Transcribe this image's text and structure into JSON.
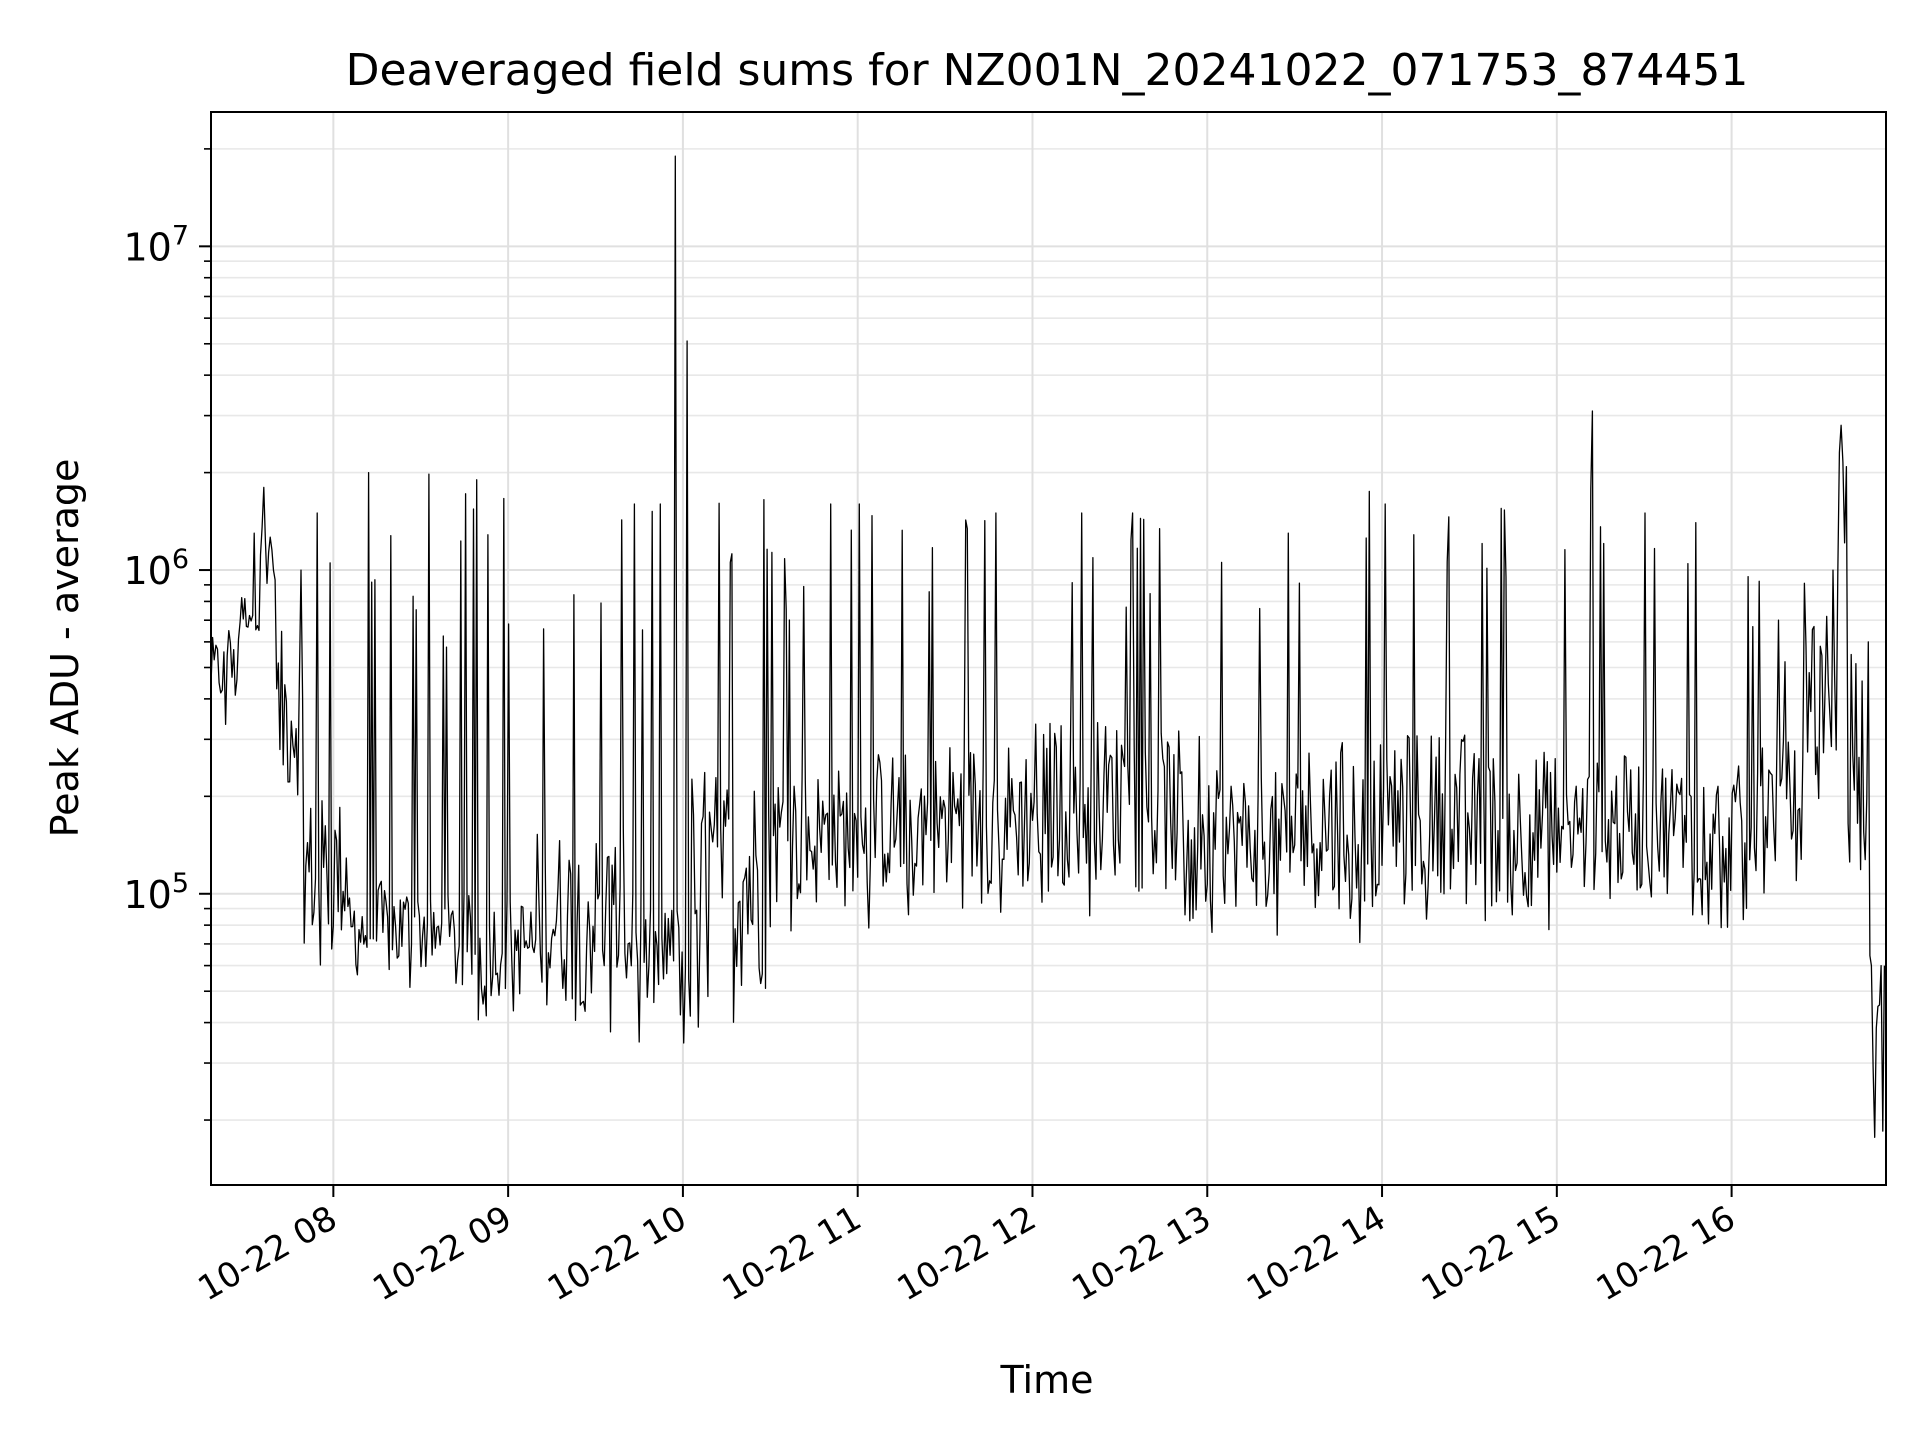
{
  "chart_data": {
    "type": "line",
    "title": "Deaveraged field sums for NZ001N_20241022_071753_874451",
    "xlabel": "Time",
    "ylabel": "Peak ADU - average",
    "x_range": [
      "2024-10-22 07:18",
      "2024-10-22 16:53"
    ],
    "y_scale": "log",
    "ylim": [
      12600,
      26000000
    ],
    "grid": true,
    "x_ticks": [
      {
        "x": "2024-10-22 08:00",
        "label": "10-22 08"
      },
      {
        "x": "2024-10-22 09:00",
        "label": "10-22 09"
      },
      {
        "x": "2024-10-22 10:00",
        "label": "10-22 10"
      },
      {
        "x": "2024-10-22 11:00",
        "label": "10-22 11"
      },
      {
        "x": "2024-10-22 12:00",
        "label": "10-22 12"
      },
      {
        "x": "2024-10-22 13:00",
        "label": "10-22 13"
      },
      {
        "x": "2024-10-22 14:00",
        "label": "10-22 14"
      },
      {
        "x": "2024-10-22 15:00",
        "label": "10-22 15"
      },
      {
        "x": "2024-10-22 16:00",
        "label": "10-22 16"
      }
    ],
    "y_ticks": [
      {
        "value": 100000,
        "base": "10",
        "exp": "5"
      },
      {
        "value": 1000000,
        "base": "10",
        "exp": "6"
      },
      {
        "value": 10000000,
        "base": "10",
        "exp": "7"
      }
    ],
    "series": [
      {
        "color": "#000000",
        "segments": [
          {
            "start": "2024-10-22 07:18",
            "end": "2024-10-22 07:28",
            "low": 380000,
            "high": 620000,
            "spike": 650000
          },
          {
            "start": "2024-10-22 07:28",
            "end": "2024-10-22 07:35",
            "low": 650000,
            "high": 850000,
            "spike": 1300000
          },
          {
            "start": "2024-10-22 07:35",
            "end": "2024-10-22 07:40",
            "low": 900000,
            "high": 1500000,
            "spike": 1800000
          },
          {
            "start": "2024-10-22 07:40",
            "end": "2024-10-22 07:50",
            "low": 200000,
            "high": 650000,
            "spike": 1000000
          },
          {
            "start": "2024-10-22 07:50",
            "end": "2024-10-22 08:05",
            "low": 70000,
            "high": 200000,
            "spike": 1500000
          },
          {
            "start": "2024-10-22 08:05",
            "end": "2024-10-22 08:35",
            "low": 55000,
            "high": 110000,
            "spike": 2000000
          },
          {
            "start": "2024-10-22 08:35",
            "end": "2024-10-22 09:10",
            "low": 48000,
            "high": 100000,
            "spike": 1900000
          },
          {
            "start": "2024-10-22 09:10",
            "end": "2024-10-22 09:45",
            "low": 45000,
            "high": 160000,
            "spike": 1600000
          },
          {
            "start": "2024-10-22 09:45",
            "end": "2024-10-22 09:55",
            "low": 42000,
            "high": 90000,
            "spike": 1600000
          },
          {
            "start": "2024-10-22 09:55",
            "end": "2024-10-22 09:58",
            "low": 45000,
            "high": 90000,
            "spike": 19000000
          },
          {
            "start": "2024-10-22 09:58",
            "end": "2024-10-22 10:02",
            "low": 40000,
            "high": 95000,
            "spike": 5100000
          },
          {
            "start": "2024-10-22 10:02",
            "end": "2024-10-22 10:30",
            "low": 50000,
            "high": 250000,
            "spike": 1650000
          },
          {
            "start": "2024-10-22 10:30",
            "end": "2024-10-22 11:00",
            "low": 90000,
            "high": 250000,
            "spike": 1600000
          },
          {
            "start": "2024-10-22 11:00",
            "end": "2024-10-22 11:30",
            "low": 100000,
            "high": 280000,
            "spike": 1600000
          },
          {
            "start": "2024-10-22 11:30",
            "end": "2024-10-22 12:00",
            "low": 100000,
            "high": 300000,
            "spike": 1500000
          },
          {
            "start": "2024-10-22 12:00",
            "end": "2024-10-22 12:30",
            "low": 110000,
            "high": 350000,
            "spike": 1500000
          },
          {
            "start": "2024-10-22 12:30",
            "end": "2024-10-22 13:00",
            "low": 100000,
            "high": 320000,
            "spike": 1500000
          },
          {
            "start": "2024-10-22 13:00",
            "end": "2024-10-22 13:30",
            "low": 90000,
            "high": 240000,
            "spike": 1300000
          },
          {
            "start": "2024-10-22 13:30",
            "end": "2024-10-22 14:00",
            "low": 90000,
            "high": 300000,
            "spike": 1750000
          },
          {
            "start": "2024-10-22 14:00",
            "end": "2024-10-22 14:30",
            "low": 100000,
            "high": 320000,
            "spike": 1600000
          },
          {
            "start": "2024-10-22 14:30",
            "end": "2024-10-22 15:00",
            "low": 90000,
            "high": 280000,
            "spike": 1550000
          },
          {
            "start": "2024-10-22 15:00",
            "end": "2024-10-22 15:15",
            "low": 95000,
            "high": 260000,
            "spike": 3100000
          },
          {
            "start": "2024-10-22 15:15",
            "end": "2024-10-22 15:45",
            "low": 100000,
            "high": 270000,
            "spike": 1500000
          },
          {
            "start": "2024-10-22 15:45",
            "end": "2024-10-22 16:10",
            "low": 100000,
            "high": 250000,
            "spike": 1400000
          },
          {
            "start": "2024-10-22 16:10",
            "end": "2024-10-22 16:25",
            "low": 120000,
            "high": 300000,
            "spike": 700000
          },
          {
            "start": "2024-10-22 16:25",
            "end": "2024-10-22 16:37",
            "low": 250000,
            "high": 800000,
            "spike": 1000000
          },
          {
            "start": "2024-10-22 16:37",
            "end": "2024-10-22 16:40",
            "low": 1200000,
            "high": 2500000,
            "spike": 2800000
          },
          {
            "start": "2024-10-22 16:40",
            "end": "2024-10-22 16:48",
            "low": 60000,
            "high": 600000,
            "spike": 600000
          },
          {
            "start": "2024-10-22 16:48",
            "end": "2024-10-22 16:53",
            "low": 16000,
            "high": 60000,
            "spike": 60000
          }
        ]
      }
    ]
  }
}
